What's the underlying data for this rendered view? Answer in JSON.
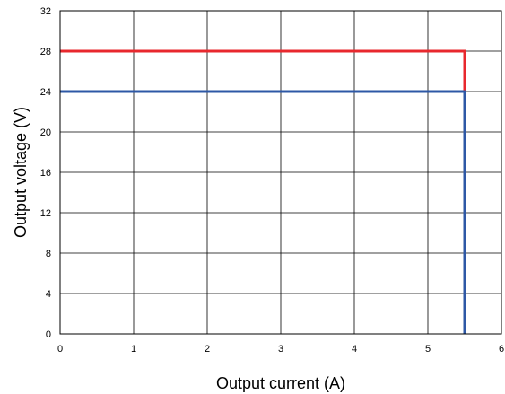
{
  "chart_data": {
    "type": "line",
    "title": "",
    "xlabel": "Output current (A)",
    "ylabel": "Output voltage (V)",
    "xlim": [
      0,
      6
    ],
    "ylim": [
      0,
      32
    ],
    "xticks": [
      0,
      1,
      2,
      3,
      4,
      5,
      6
    ],
    "yticks": [
      0,
      4,
      8,
      12,
      16,
      20,
      24,
      28,
      32
    ],
    "grid": true,
    "legend": "none",
    "series": [
      {
        "color": "#e8282e",
        "points": [
          [
            0,
            28
          ],
          [
            5.5,
            28
          ],
          [
            5.5,
            24
          ]
        ]
      },
      {
        "color": "#2e58a6",
        "points": [
          [
            0,
            24
          ],
          [
            5.5,
            24
          ],
          [
            5.5,
            0
          ]
        ]
      }
    ]
  }
}
